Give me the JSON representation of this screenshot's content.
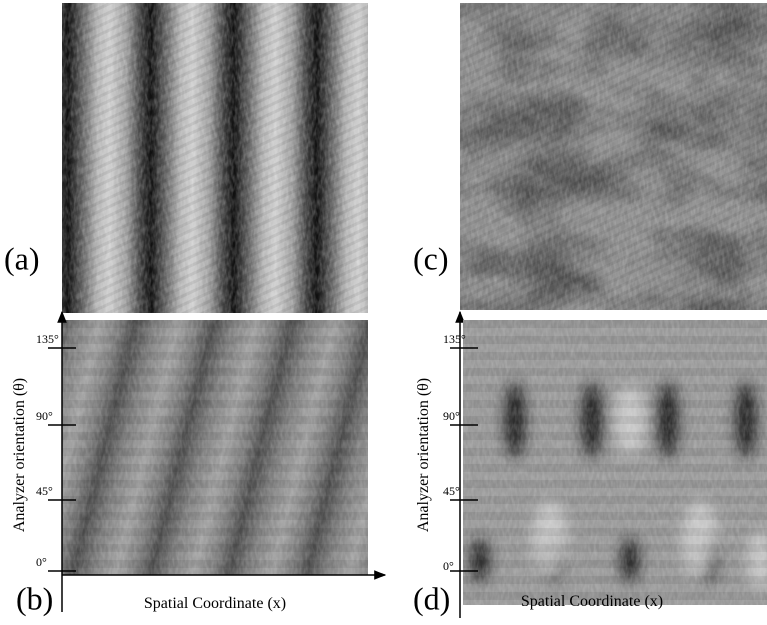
{
  "panels": [
    {
      "label": "(a)"
    },
    {
      "label": "(b)",
      "y_axis_label": "Analyzer orientation (θ)",
      "x_axis_label": "Spatial Coordinate (x)",
      "ticks": [
        "0°",
        "45°",
        "90°",
        "135°"
      ]
    },
    {
      "label": "(c)"
    },
    {
      "label": "(d)",
      "y_axis_label": "Analyzer orientation (θ)",
      "x_axis_label": "Spatial Coordinate (x)",
      "ticks": [
        "0°",
        "45°",
        "90°",
        "135°"
      ]
    }
  ]
}
